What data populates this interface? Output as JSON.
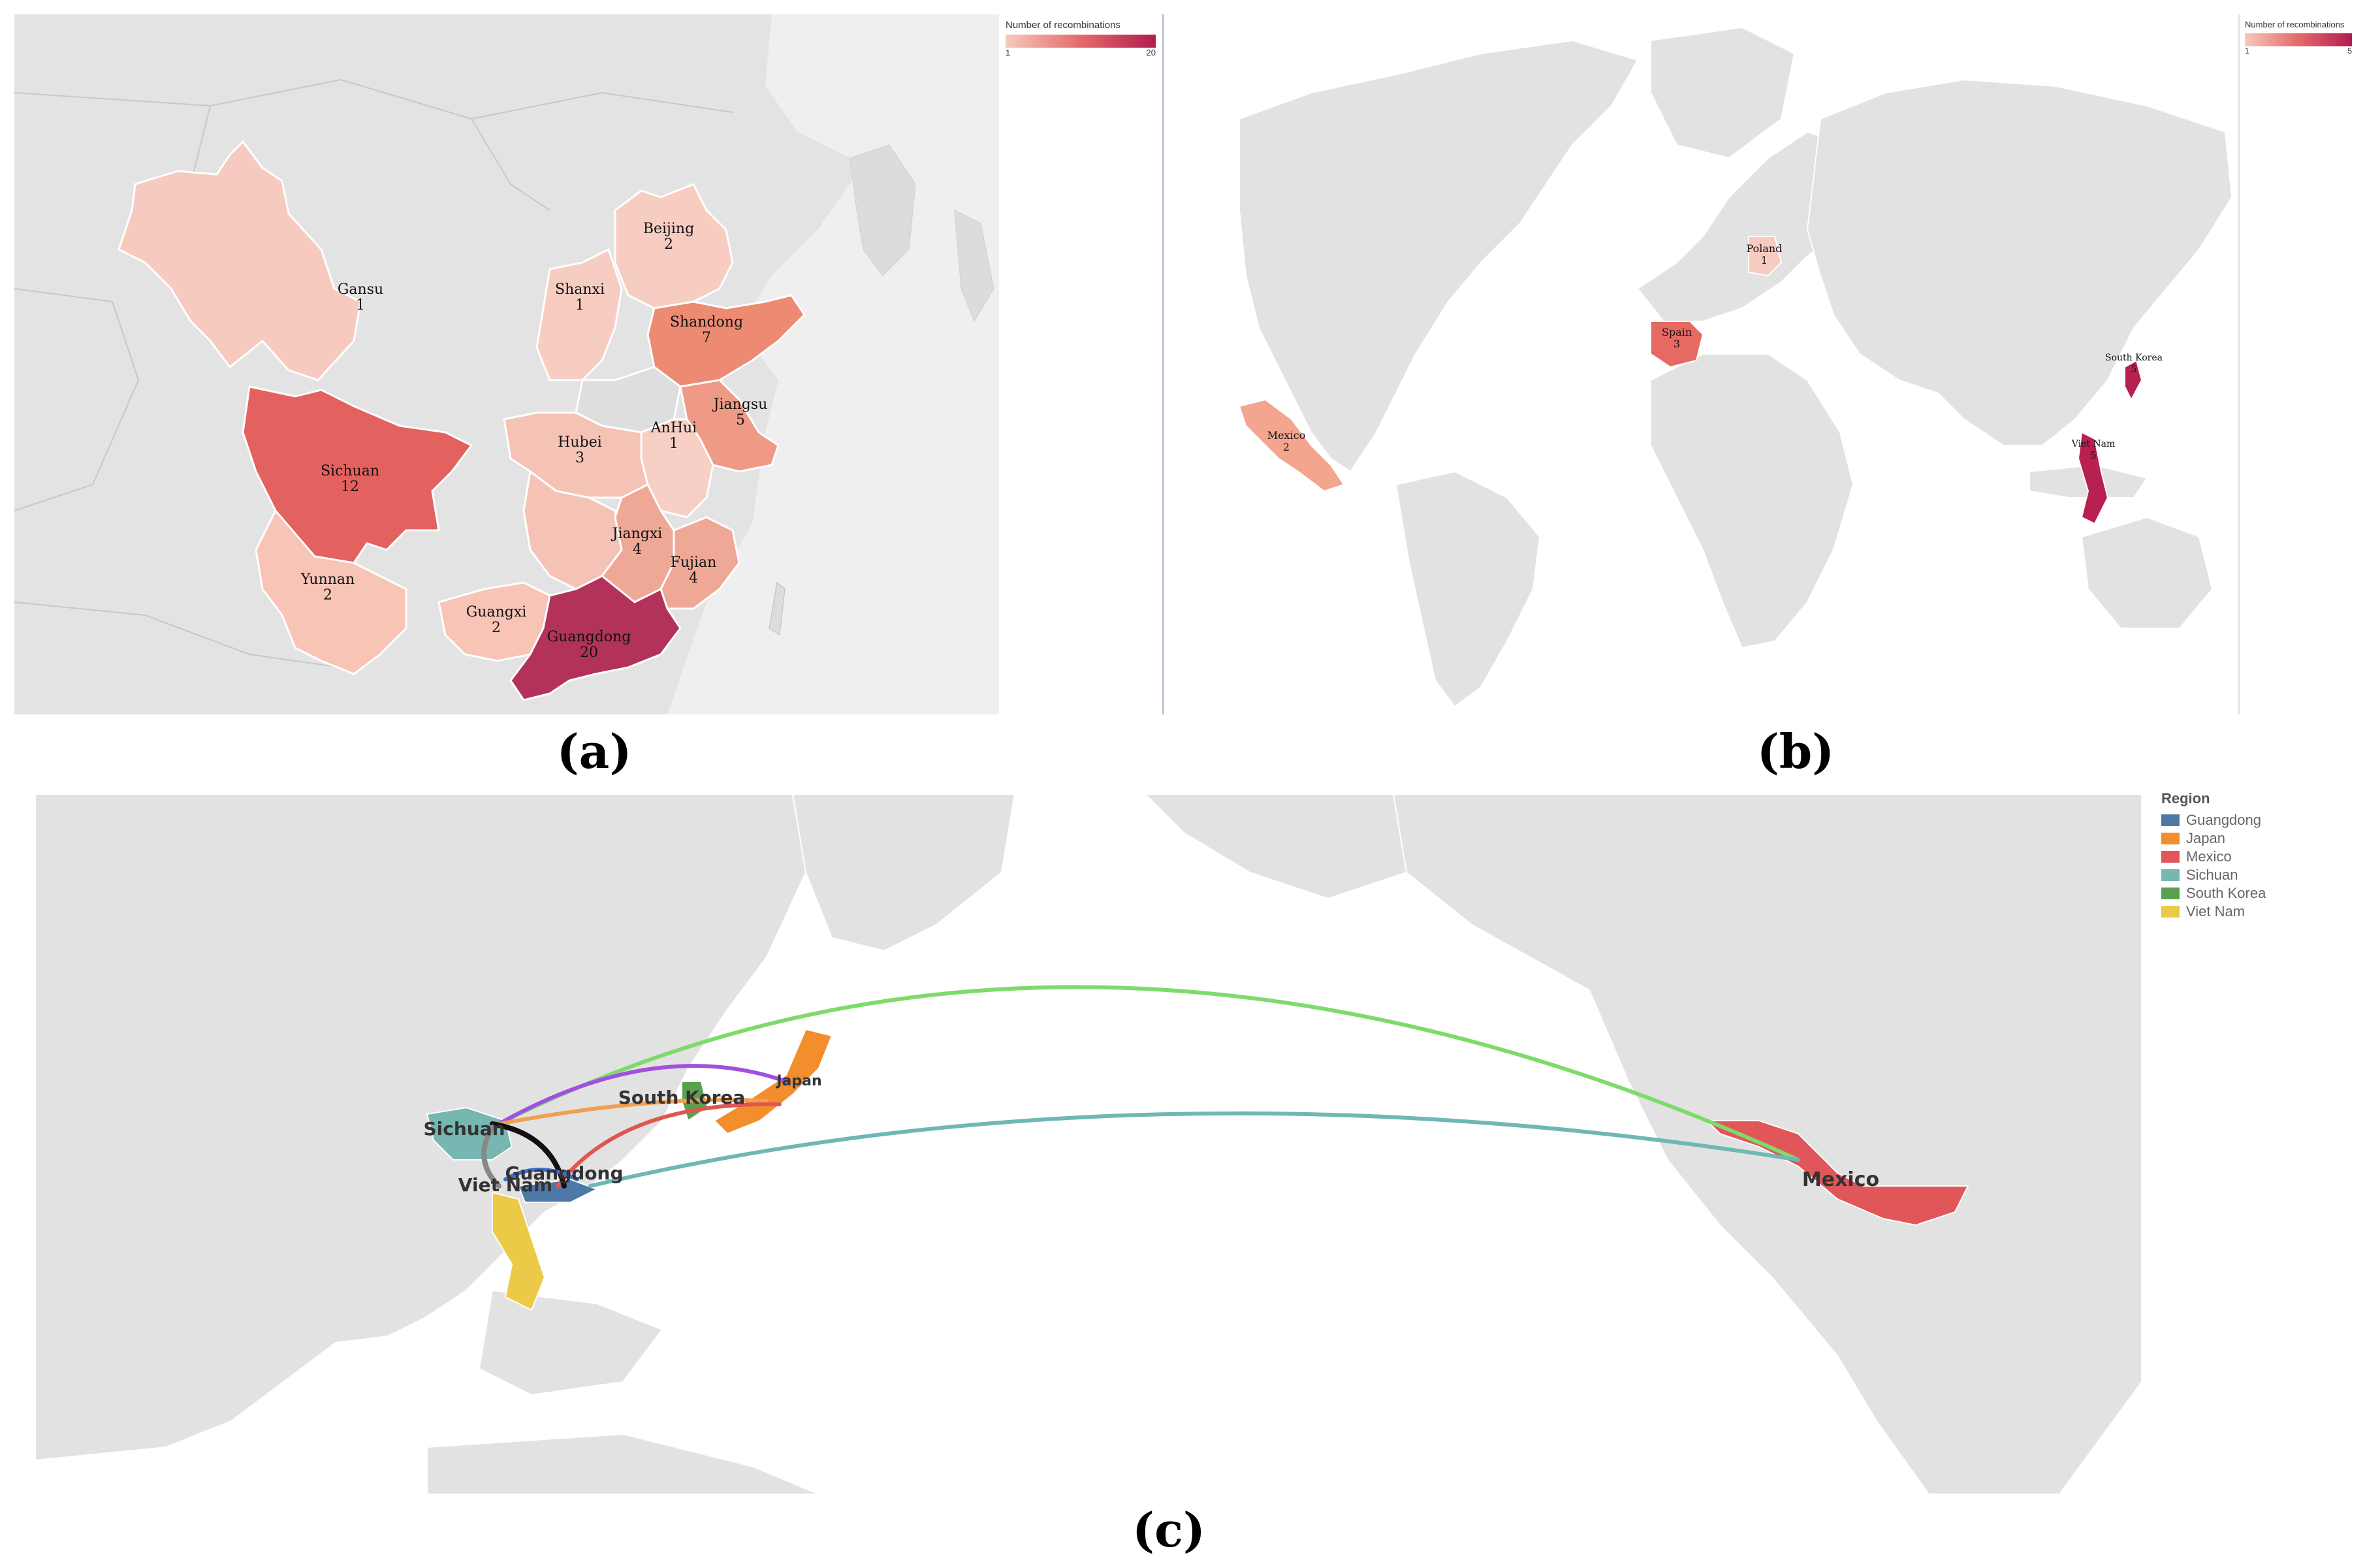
{
  "figure": {
    "caption_a": "(a)",
    "caption_b": "(b)",
    "caption_c": "(c)"
  },
  "panel_a": {
    "legend_title": "Number of recombinations",
    "legend_min": "1",
    "legend_max": "20",
    "color_low": "#f7c9bd",
    "color_high": "#b01e4e",
    "regions": [
      {
        "name": "Gansu",
        "value": "1"
      },
      {
        "name": "Beijing",
        "value": "2"
      },
      {
        "name": "Shanxi",
        "value": "1"
      },
      {
        "name": "Shandong",
        "value": "7"
      },
      {
        "name": "Jiangsu",
        "value": "5"
      },
      {
        "name": "AnHui",
        "value": "1"
      },
      {
        "name": "Sichuan",
        "value": "12"
      },
      {
        "name": "Hubei",
        "value": "3"
      },
      {
        "name": "Jiangxi",
        "value": "4"
      },
      {
        "name": "Fujian",
        "value": "4"
      },
      {
        "name": "Yunnan",
        "value": "2"
      },
      {
        "name": "Guangxi",
        "value": "2"
      },
      {
        "name": "Guangdong",
        "value": "20"
      }
    ]
  },
  "panel_b": {
    "legend_title": "Number of recombinations",
    "legend_min": "1",
    "legend_max": "5",
    "countries": [
      {
        "name": "Poland",
        "value": "1"
      },
      {
        "name": "Spain",
        "value": "3"
      },
      {
        "name": "Mexico",
        "value": "2"
      },
      {
        "name": "South Korea",
        "value": "5"
      },
      {
        "name": "Viet Nam",
        "value": "5"
      }
    ]
  },
  "panel_c": {
    "legend_title": "Region",
    "regions": [
      {
        "name": "Guangdong",
        "color": "#4e79a7"
      },
      {
        "name": "Japan",
        "color": "#f28e2b"
      },
      {
        "name": "Mexico",
        "color": "#e15759"
      },
      {
        "name": "Sichuan",
        "color": "#76b7b2"
      },
      {
        "name": "South Korea",
        "color": "#59a14f"
      },
      {
        "name": "Viet Nam",
        "color": "#edc948"
      }
    ],
    "map_labels": {
      "sichuan": "Sichuan",
      "guangdong": "Guangdong",
      "vietnam": "Viet Nam",
      "south_korea": "South Korea",
      "japan": "Japan",
      "mexico": "Mexico"
    },
    "links": [
      {
        "from": "Sichuan",
        "to": "Mexico",
        "color": "#7ddb6b"
      },
      {
        "from": "Guangdong",
        "to": "Mexico",
        "color": "#6fb7b4"
      },
      {
        "from": "Sichuan",
        "to": "Japan",
        "color": "#a24fe0"
      },
      {
        "from": "Sichuan",
        "to": "Japan",
        "color": "#f0a050"
      },
      {
        "from": "Guangdong",
        "to": "Japan",
        "color": "#e0564f"
      },
      {
        "from": "Sichuan",
        "to": "Guangdong",
        "color": "#111111"
      },
      {
        "from": "Guangdong",
        "to": "Viet Nam",
        "color": "#3a6fd0"
      },
      {
        "from": "Sichuan",
        "to": "Viet Nam",
        "color": "#888888"
      }
    ]
  }
}
